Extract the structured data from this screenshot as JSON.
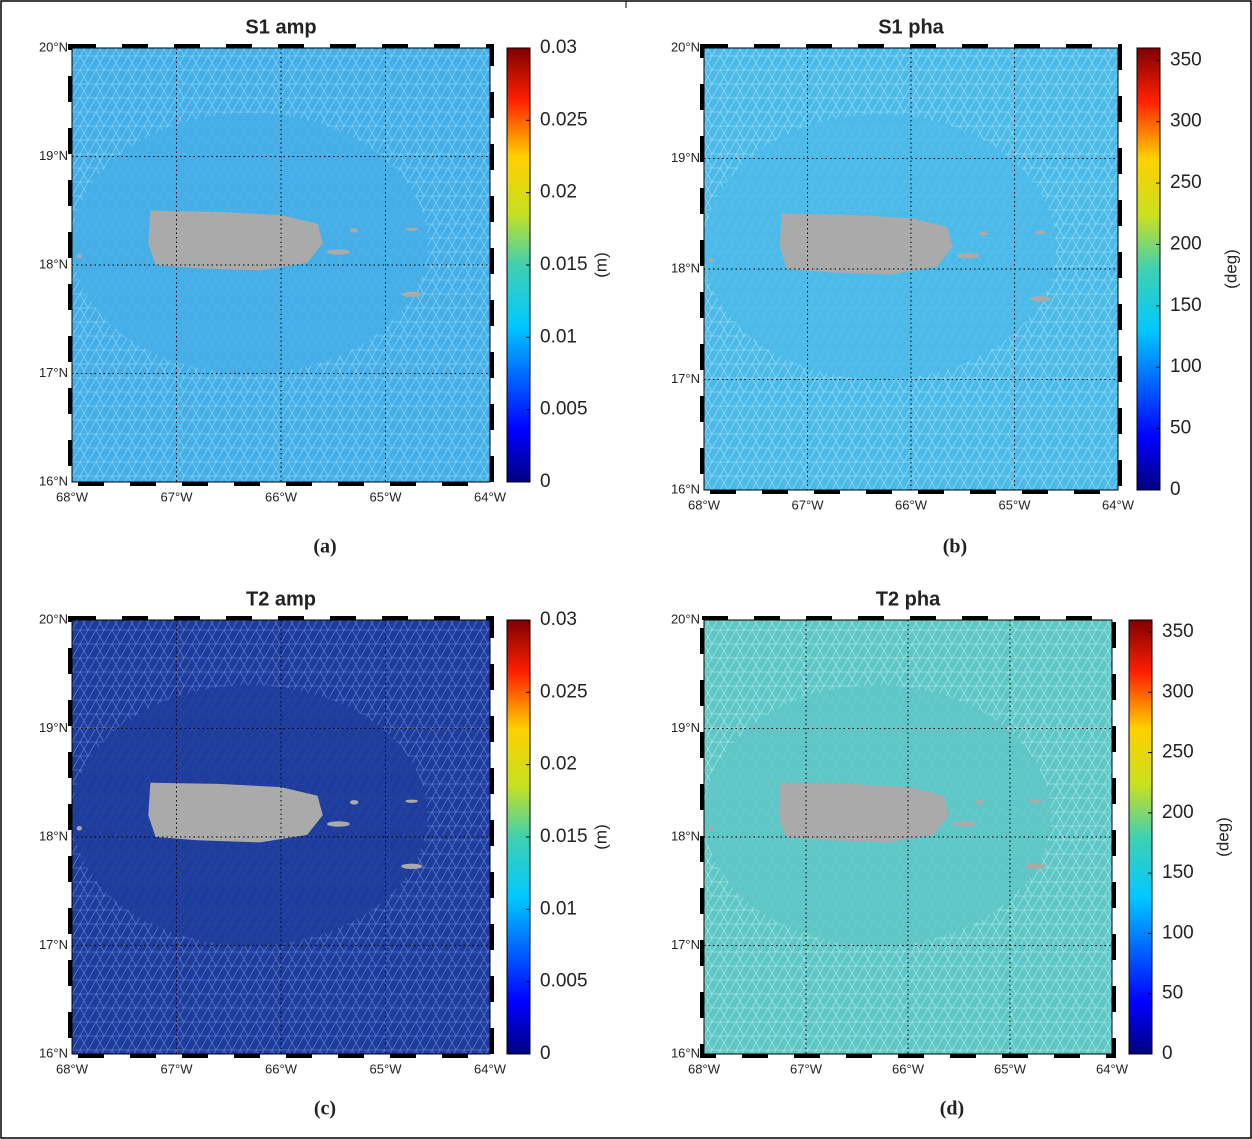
{
  "map": {
    "xlim": [
      -68,
      -64
    ],
    "ylim": [
      16,
      20
    ],
    "xticks": [
      {
        "value": -68,
        "label": "68°W"
      },
      {
        "value": -67,
        "label": "67°W"
      },
      {
        "value": -66,
        "label": "66°W"
      },
      {
        "value": -65,
        "label": "65°W"
      },
      {
        "value": -64,
        "label": "64°W"
      }
    ],
    "yticks": [
      {
        "value": 16,
        "label": "16°N"
      },
      {
        "value": 17,
        "label": "17°N"
      },
      {
        "value": 18,
        "label": "18°N"
      },
      {
        "value": 19,
        "label": "19°N"
      },
      {
        "value": 20,
        "label": "20°N"
      }
    ]
  },
  "panels": [
    {
      "title": "S1 amp",
      "caption": "(a)",
      "color": "#45aee6",
      "mesh_color": "#7fd0f5",
      "colorbar": {
        "label": "(m)",
        "lim": [
          0,
          0.03
        ],
        "ticks": [
          0,
          0.005,
          0.01,
          0.015,
          0.02,
          0.025,
          0.03
        ]
      }
    },
    {
      "title": "S1 pha",
      "caption": "(b)",
      "color": "#4cbae9",
      "mesh_color": "#8fd8f2",
      "colorbar": {
        "label": "(deg)",
        "lim": [
          0,
          360
        ],
        "ticks": [
          0,
          50,
          100,
          150,
          200,
          250,
          300,
          350
        ]
      }
    },
    {
      "title": "T2 amp",
      "caption": "(c)",
      "color": "#1e3c9c",
      "mesh_color": "#5a74c8",
      "colorbar": {
        "label": "(m)",
        "lim": [
          0,
          0.03
        ],
        "ticks": [
          0,
          0.005,
          0.01,
          0.015,
          0.02,
          0.025,
          0.03
        ]
      }
    },
    {
      "title": "T2 pha",
      "caption": "(d)",
      "color": "#5ec6c6",
      "mesh_color": "#9fe3de",
      "colorbar": {
        "label": "(deg)",
        "lim": [
          0,
          360
        ],
        "ticks": [
          0,
          50,
          100,
          150,
          200,
          250,
          300,
          350
        ]
      }
    }
  ]
}
